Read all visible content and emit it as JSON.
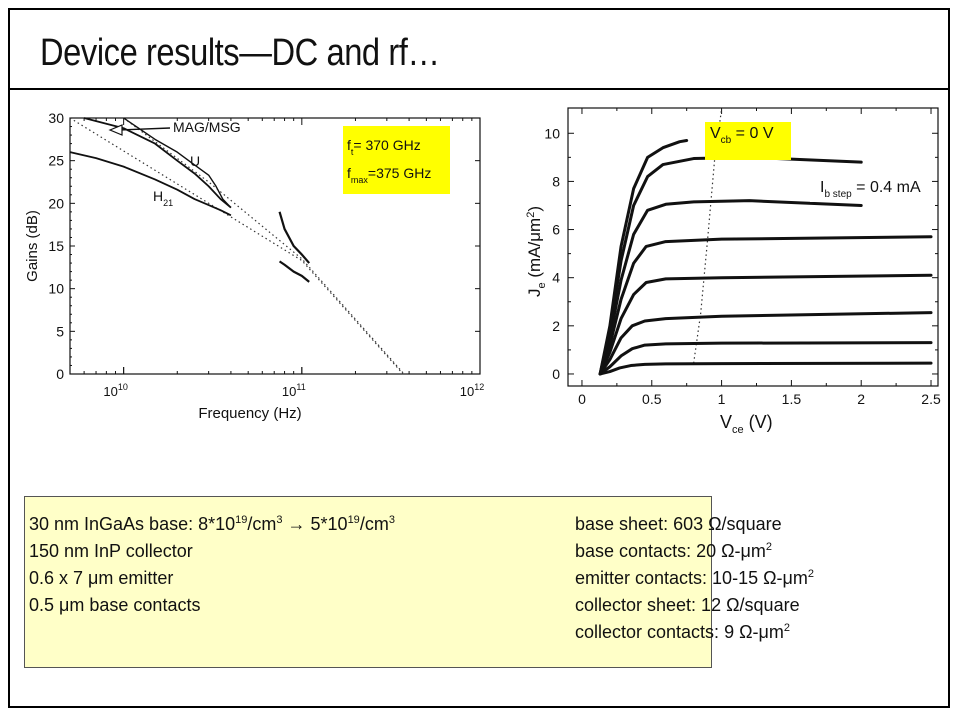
{
  "title": "Device results—DC and rf…",
  "colors": {
    "annotation_bg": "#ffff00",
    "info_bg": "#ffffc8",
    "curve": "#111111"
  },
  "chart_data": [
    {
      "type": "line",
      "xscale": "log",
      "xlabel": "Frequency (Hz)",
      "ylabel": "Gains (dB)",
      "xlim": [
        5000000000.0,
        1000000000000.0
      ],
      "ylim": [
        0,
        30
      ],
      "xticks": [
        {
          "value": 10000000000.0,
          "base": "10",
          "exp": "10"
        },
        {
          "value": 100000000000.0,
          "base": "10",
          "exp": "11"
        },
        {
          "value": 1000000000000.0,
          "base": "10",
          "exp": "12"
        }
      ],
      "yticks": [
        "0",
        "5",
        "10",
        "15",
        "20",
        "25",
        "30"
      ],
      "grid": false,
      "series": [
        {
          "name": "MAG/MSG",
          "x": [
            6000000000.0,
            10000000000.0,
            15000000000.0,
            20000000000.0,
            25000000000.0,
            30000000000.0,
            35000000000.0,
            40000000000.0
          ],
          "y": [
            30,
            28.8,
            27,
            25,
            23.5,
            22,
            20.5,
            19.5
          ]
        },
        {
          "name": "U",
          "x": [
            10000000000.0,
            15000000000.0,
            20000000000.0,
            25000000000.0,
            30000000000.0,
            33000000000.0,
            36000000000.0,
            40000000000.0
          ],
          "y": [
            30,
            27.5,
            26,
            24.5,
            23.3,
            22,
            20.5,
            19.5
          ]
        },
        {
          "name": "H21",
          "x": [
            5000000000.0,
            7000000000.0,
            10000000000.0,
            15000000000.0,
            20000000000.0,
            25000000000.0,
            30000000000.0,
            35000000000.0,
            40000000000.0
          ],
          "y": [
            26,
            25.3,
            24.3,
            22.8,
            21.6,
            20.5,
            19.8,
            19.2,
            18.6
          ]
        },
        {
          "name": "",
          "x": [
            75000000000.0,
            80000000000.0,
            90000000000.0,
            100000000000.0,
            110000000000.0
          ],
          "y": [
            19,
            17,
            15,
            14,
            13
          ]
        },
        {
          "name": "",
          "x": [
            75000000000.0,
            80000000000.0,
            90000000000.0,
            100000000000.0,
            110000000000.0
          ],
          "y": [
            13.2,
            12.8,
            12,
            11.5,
            10.8
          ]
        }
      ],
      "asymptotes": [
        {
          "x": [
            5000000000.0,
            100000000000.0,
            370000000000.0
          ],
          "y": [
            30,
            13.3,
            0
          ]
        },
        {
          "x": [
            10000000000.0,
            30000000000.0,
            100000000000.0,
            375000000000.0
          ],
          "y": [
            30,
            22.5,
            13.5,
            0
          ]
        }
      ],
      "annotation": {
        "ft_label": "f",
        "ft_sub": "t",
        "ft_value": "= 370 GHz",
        "fmax_label": "f",
        "fmax_sub": "max",
        "fmax_value": "=375 GHz"
      },
      "curve_labels": {
        "mag": "MAG/MSG",
        "u": "U",
        "h21": "H",
        "h21_sub": "21"
      }
    },
    {
      "type": "line",
      "xlabel": "V",
      "xlabel_sub": "ce",
      "xlabel_unit": "(V)",
      "ylabel": "J",
      "ylabel_sub": "e",
      "ylabel_unit": "(mA/μm",
      "ylabel_exp": "2",
      "ylabel_close": ")",
      "xlim": [
        0,
        2.5
      ],
      "ylim": [
        0,
        10
      ],
      "xticks": [
        "0",
        "0.5",
        "1",
        "1.5",
        "2",
        "2.5"
      ],
      "yticks": [
        "0",
        "2",
        "4",
        "6",
        "8",
        "10"
      ],
      "grid": false,
      "series": [
        {
          "name": "",
          "x": [
            0.13,
            0.2,
            0.27,
            0.35,
            0.45,
            0.6,
            1.0,
            2.5
          ],
          "y": [
            0,
            0.1,
            0.25,
            0.35,
            0.4,
            0.42,
            0.43,
            0.45
          ]
        },
        {
          "name": "",
          "x": [
            0.13,
            0.2,
            0.28,
            0.36,
            0.45,
            0.6,
            1.0,
            2.5
          ],
          "y": [
            0,
            0.3,
            0.75,
            1.05,
            1.2,
            1.25,
            1.28,
            1.3
          ]
        },
        {
          "name": "",
          "x": [
            0.13,
            0.2,
            0.28,
            0.36,
            0.45,
            0.6,
            1.0,
            2.5
          ],
          "y": [
            0,
            0.6,
            1.5,
            2.0,
            2.2,
            2.3,
            2.4,
            2.55
          ]
        },
        {
          "name": "",
          "x": [
            0.13,
            0.2,
            0.28,
            0.37,
            0.46,
            0.6,
            1.0,
            2.5
          ],
          "y": [
            0,
            0.9,
            2.3,
            3.3,
            3.8,
            3.95,
            4.0,
            4.1
          ]
        },
        {
          "name": "",
          "x": [
            0.13,
            0.2,
            0.28,
            0.37,
            0.46,
            0.6,
            1.0,
            2.5
          ],
          "y": [
            0,
            1.2,
            3.1,
            4.6,
            5.3,
            5.5,
            5.6,
            5.7
          ]
        },
        {
          "name": "",
          "x": [
            0.13,
            0.2,
            0.28,
            0.37,
            0.47,
            0.6,
            0.8,
            1.2,
            2.0
          ],
          "y": [
            0,
            1.5,
            3.9,
            5.8,
            6.8,
            7.05,
            7.15,
            7.2,
            7.0
          ]
        },
        {
          "name": "",
          "x": [
            0.13,
            0.2,
            0.28,
            0.37,
            0.47,
            0.58,
            0.8,
            1.2,
            2.0
          ],
          "y": [
            0,
            1.8,
            4.7,
            7.0,
            8.2,
            8.7,
            8.95,
            9.0,
            8.8
          ]
        },
        {
          "name": "",
          "x": [
            0.13,
            0.2,
            0.28,
            0.37,
            0.47,
            0.58,
            0.7,
            0.75
          ],
          "y": [
            0,
            2.0,
            5.3,
            7.7,
            9.0,
            9.4,
            9.65,
            9.7
          ]
        }
      ],
      "vcb0_line": {
        "x": [
          0.8,
          0.85,
          0.9,
          0.95,
          1.0
        ],
        "y": [
          0.45,
          2.5,
          5.6,
          8.9,
          11
        ]
      },
      "annotation": {
        "vcb_label": "V",
        "vcb_sub": "cb",
        "vcb_value": " = 0 V",
        "ib_label": "I",
        "ib_sub": "b step",
        "ib_value": " = 0.4 mA"
      }
    }
  ],
  "info": {
    "left": [
      {
        "text": "30 nm InGaAs base: 8*10",
        "sup": "19",
        "after": "/cm",
        "sup2": "3",
        "after2": " → 5*10",
        "sup3": "19",
        "after3": "/cm",
        "sup4": "3"
      },
      {
        "text": "150 nm InP collector"
      },
      {
        "text": "0.6 x 7 μm emitter"
      },
      {
        "text": "0.5 μm base contacts"
      }
    ],
    "right": [
      {
        "text": "base sheet: 603 Ω/square"
      },
      {
        "text": "base contacts: 20 Ω-μm",
        "sup": "2"
      },
      {
        "text": "emitter contacts: 10-15 Ω-μm",
        "sup": "2"
      },
      {
        "text": "collector sheet: 12 Ω/square"
      },
      {
        "text": "collector contacts:  9 Ω-μm",
        "sup": "2"
      }
    ]
  }
}
